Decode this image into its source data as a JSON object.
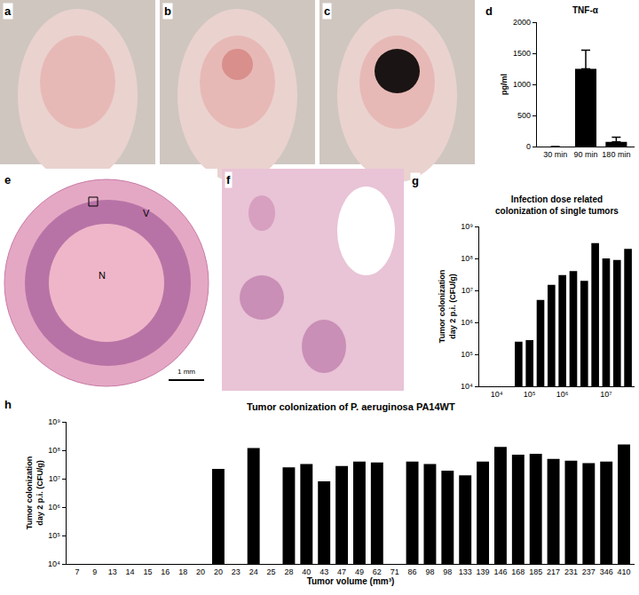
{
  "photos": [
    {
      "label": "a"
    },
    {
      "label": "b"
    },
    {
      "label": "c"
    },
    {
      "label": "e",
      "texts": [
        "V",
        "N",
        "1 mm"
      ]
    },
    {
      "label": "f"
    }
  ],
  "chart_data": [
    {
      "label": "d",
      "type": "bar",
      "title": "TNF-α",
      "ylabel": "pg/ml",
      "categories": [
        "30 min",
        "90 min",
        "180 min"
      ],
      "values": [
        0,
        1250,
        75
      ],
      "error": [
        0,
        300,
        75
      ],
      "color": "#000000",
      "ylim": [
        0,
        2000
      ],
      "yticks": [
        0,
        500,
        1000,
        1500,
        2000
      ],
      "grid": false
    },
    {
      "label": "g",
      "type": "bar",
      "title": "Infection dose related\ncolonization of single tumors",
      "ylabel": "Tumor colonization\nday 2 p.i. (CFU/g)",
      "categories": [
        null,
        "10⁴",
        null,
        null,
        "10⁵",
        null,
        null,
        "10⁶",
        null,
        null,
        null,
        "10⁷",
        null,
        null
      ],
      "values": [
        null,
        null,
        null,
        250000,
        280000,
        5000000,
        15000000,
        30000000,
        40000000,
        20000000,
        300000000,
        100000000,
        90000000,
        200000000
      ],
      "color": "#000000",
      "log": "y",
      "ylim": [
        10000,
        1000000000
      ],
      "yticks": [
        {
          "value": 10000,
          "label": "10⁴"
        },
        {
          "value": 100000,
          "label": "10⁵"
        },
        {
          "value": 1000000,
          "label": "10⁶"
        },
        {
          "value": 10000000,
          "label": "10⁷"
        },
        {
          "value": 100000000,
          "label": "10⁸"
        },
        {
          "value": 1000000000,
          "label": "10⁹"
        }
      ],
      "grid": false
    },
    {
      "label": "h",
      "type": "bar",
      "title": "Tumor colonization of P. aeruginosa PA14WT",
      "ylabel": "Tumor colonization\nday 2 p.i. (CFU/g)",
      "xlabel": "Tumor volume (mm³)",
      "categories": [
        "7",
        "9",
        "13",
        "14",
        "15",
        "16",
        "18",
        "20",
        "20",
        "23",
        "24",
        "25",
        "28",
        "40",
        "43",
        "47",
        "49",
        "62",
        "71",
        "86",
        "98",
        "98",
        "133",
        "139",
        "146",
        "168",
        "185",
        "217",
        "231",
        "237",
        "346",
        "410"
      ],
      "values": [
        null,
        null,
        null,
        null,
        null,
        null,
        null,
        null,
        22000000,
        null,
        120000000,
        null,
        25000000,
        33000000,
        8000000,
        28000000,
        40000000,
        37000000,
        null,
        40000000,
        33000000,
        19000000,
        13000000,
        40000000,
        130000000,
        70000000,
        75000000,
        50000000,
        43000000,
        35000000,
        40000000,
        160000000
      ],
      "color": "#000000",
      "log": "y",
      "ylim": [
        10000,
        1000000000
      ],
      "yticks": [
        {
          "value": 10000,
          "label": "10⁴"
        },
        {
          "value": 100000,
          "label": "10⁵"
        },
        {
          "value": 1000000,
          "label": "10⁶"
        },
        {
          "value": 10000000,
          "label": "10⁷"
        },
        {
          "value": 100000000,
          "label": "10⁸"
        },
        {
          "value": 1000000000,
          "label": "10⁹"
        }
      ],
      "grid": false
    }
  ]
}
